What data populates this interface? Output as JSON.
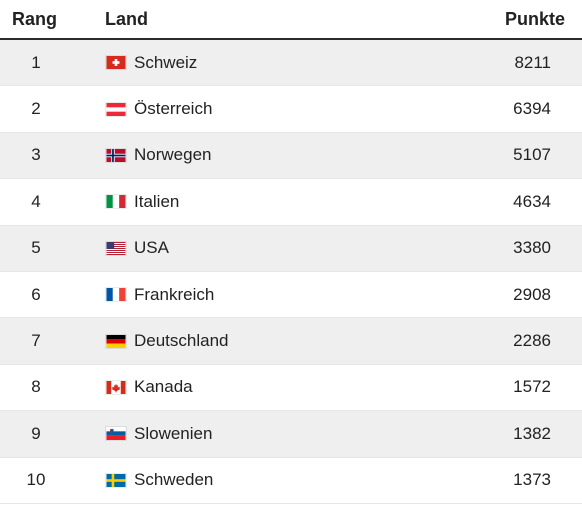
{
  "header": {
    "rank": "Rang",
    "country": "Land",
    "points": "Punkte"
  },
  "rows": [
    {
      "rank": "1",
      "country": "Schweiz",
      "points": "8211",
      "flag": "switzerland-flag-icon"
    },
    {
      "rank": "2",
      "country": "Österreich",
      "points": "6394",
      "flag": "austria-flag-icon"
    },
    {
      "rank": "3",
      "country": "Norwegen",
      "points": "5107",
      "flag": "norway-flag-icon"
    },
    {
      "rank": "4",
      "country": "Italien",
      "points": "4634",
      "flag": "italy-flag-icon"
    },
    {
      "rank": "5",
      "country": "USA",
      "points": "3380",
      "flag": "usa-flag-icon"
    },
    {
      "rank": "6",
      "country": "Frankreich",
      "points": "2908",
      "flag": "france-flag-icon"
    },
    {
      "rank": "7",
      "country": "Deutschland",
      "points": "2286",
      "flag": "germany-flag-icon"
    },
    {
      "rank": "8",
      "country": "Kanada",
      "points": "1572",
      "flag": "canada-flag-icon"
    },
    {
      "rank": "9",
      "country": "Slowenien",
      "points": "1382",
      "flag": "slovenia-flag-icon"
    },
    {
      "rank": "10",
      "country": "Schweden",
      "points": "1373",
      "flag": "sweden-flag-icon"
    }
  ],
  "colors": {
    "header_rule": "#2b2b2b",
    "alt_row": "#efefef",
    "text": "#222222"
  }
}
